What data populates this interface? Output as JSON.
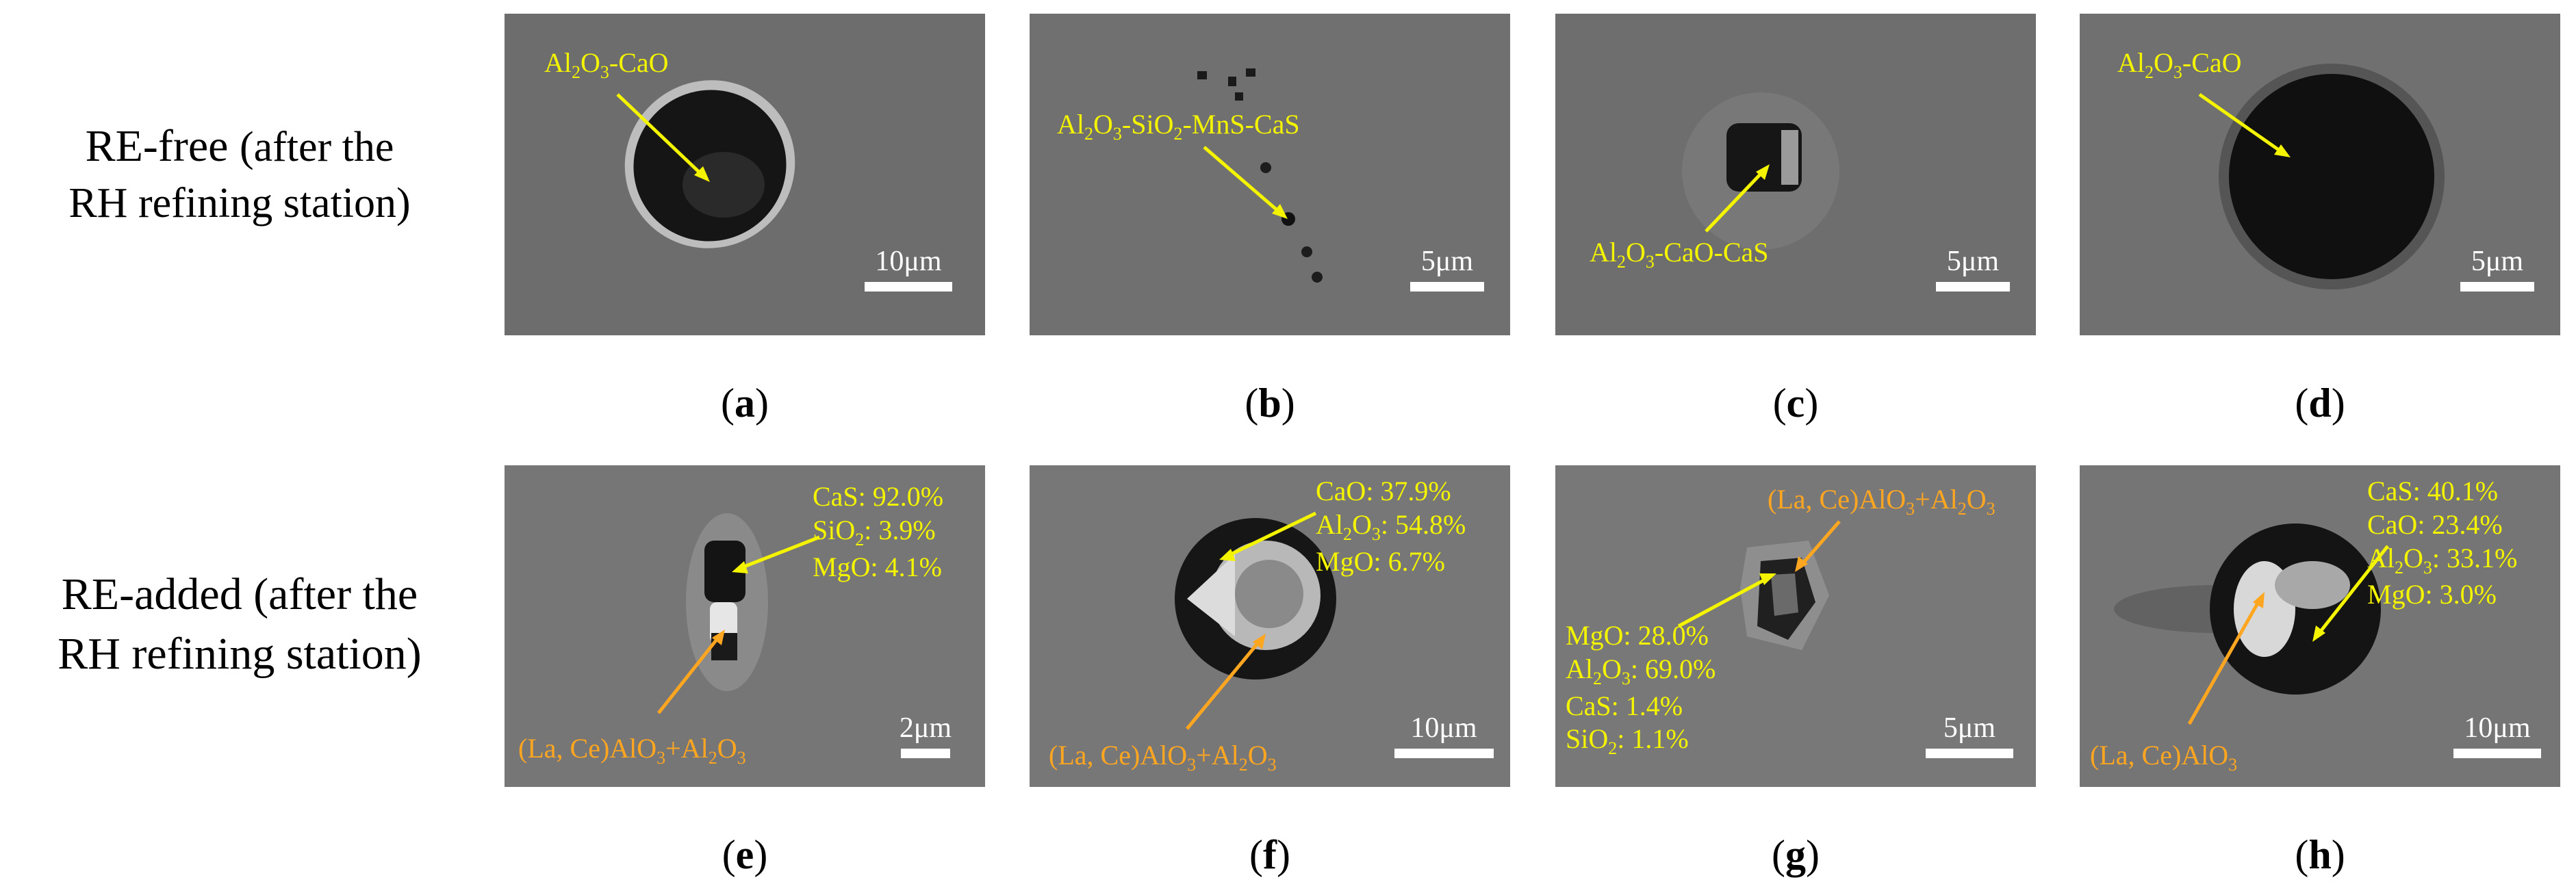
{
  "row_labels": [
    {
      "line1": "RE-free",
      "line1_paren": "(after the",
      "line2": "RH refining station)"
    },
    {
      "line1": "RE-added (after the",
      "line2": "RH refining station)"
    }
  ],
  "panels": [
    {
      "caption": "a",
      "scale": "10μm"
    },
    {
      "caption": "b",
      "scale": "5μm"
    },
    {
      "caption": "c",
      "scale": "5μm"
    },
    {
      "caption": "d",
      "scale": "5μm"
    },
    {
      "caption": "e",
      "scale": "2μm"
    },
    {
      "caption": "f",
      "scale": "10μm"
    },
    {
      "caption": "g",
      "scale": "5μm"
    },
    {
      "caption": "h",
      "scale": "10μm"
    }
  ],
  "annotations": {
    "a": "Al2O3-CaO",
    "b": "Al2O3-SiO2-MnS-CaS",
    "c": "Al2O3-CaO-CaS",
    "d": "Al2O3-CaO",
    "e_comp": [
      "CaS: 92.0%",
      "SiO2: 3.9%",
      "MgO: 4.1%"
    ],
    "e_label": "(La, Ce)AlO3+Al2O3",
    "f_comp": [
      "CaO: 37.9%",
      "Al2O3: 54.8%",
      "MgO: 6.7%"
    ],
    "f_label": "(La, Ce)AlO3+Al2O3",
    "g_label": "(La, Ce)AlO3+Al2O3",
    "g_comp": [
      "MgO: 28.0%",
      "Al2O3: 69.0%",
      "CaS: 1.4%",
      "SiO2: 1.1%"
    ],
    "h_comp": [
      "CaS: 40.1%",
      "CaO: 23.4%",
      "Al2O3: 33.1%",
      "MgO: 3.0%"
    ],
    "h_label": "(La, Ce)AlO3"
  },
  "colors": {
    "background": "#ffffff",
    "sem_gray": "#6e6e6e",
    "annotation_yellow": "#f4f400",
    "annotation_orange": "#ffa621",
    "scale_bar": "#ffffff"
  }
}
